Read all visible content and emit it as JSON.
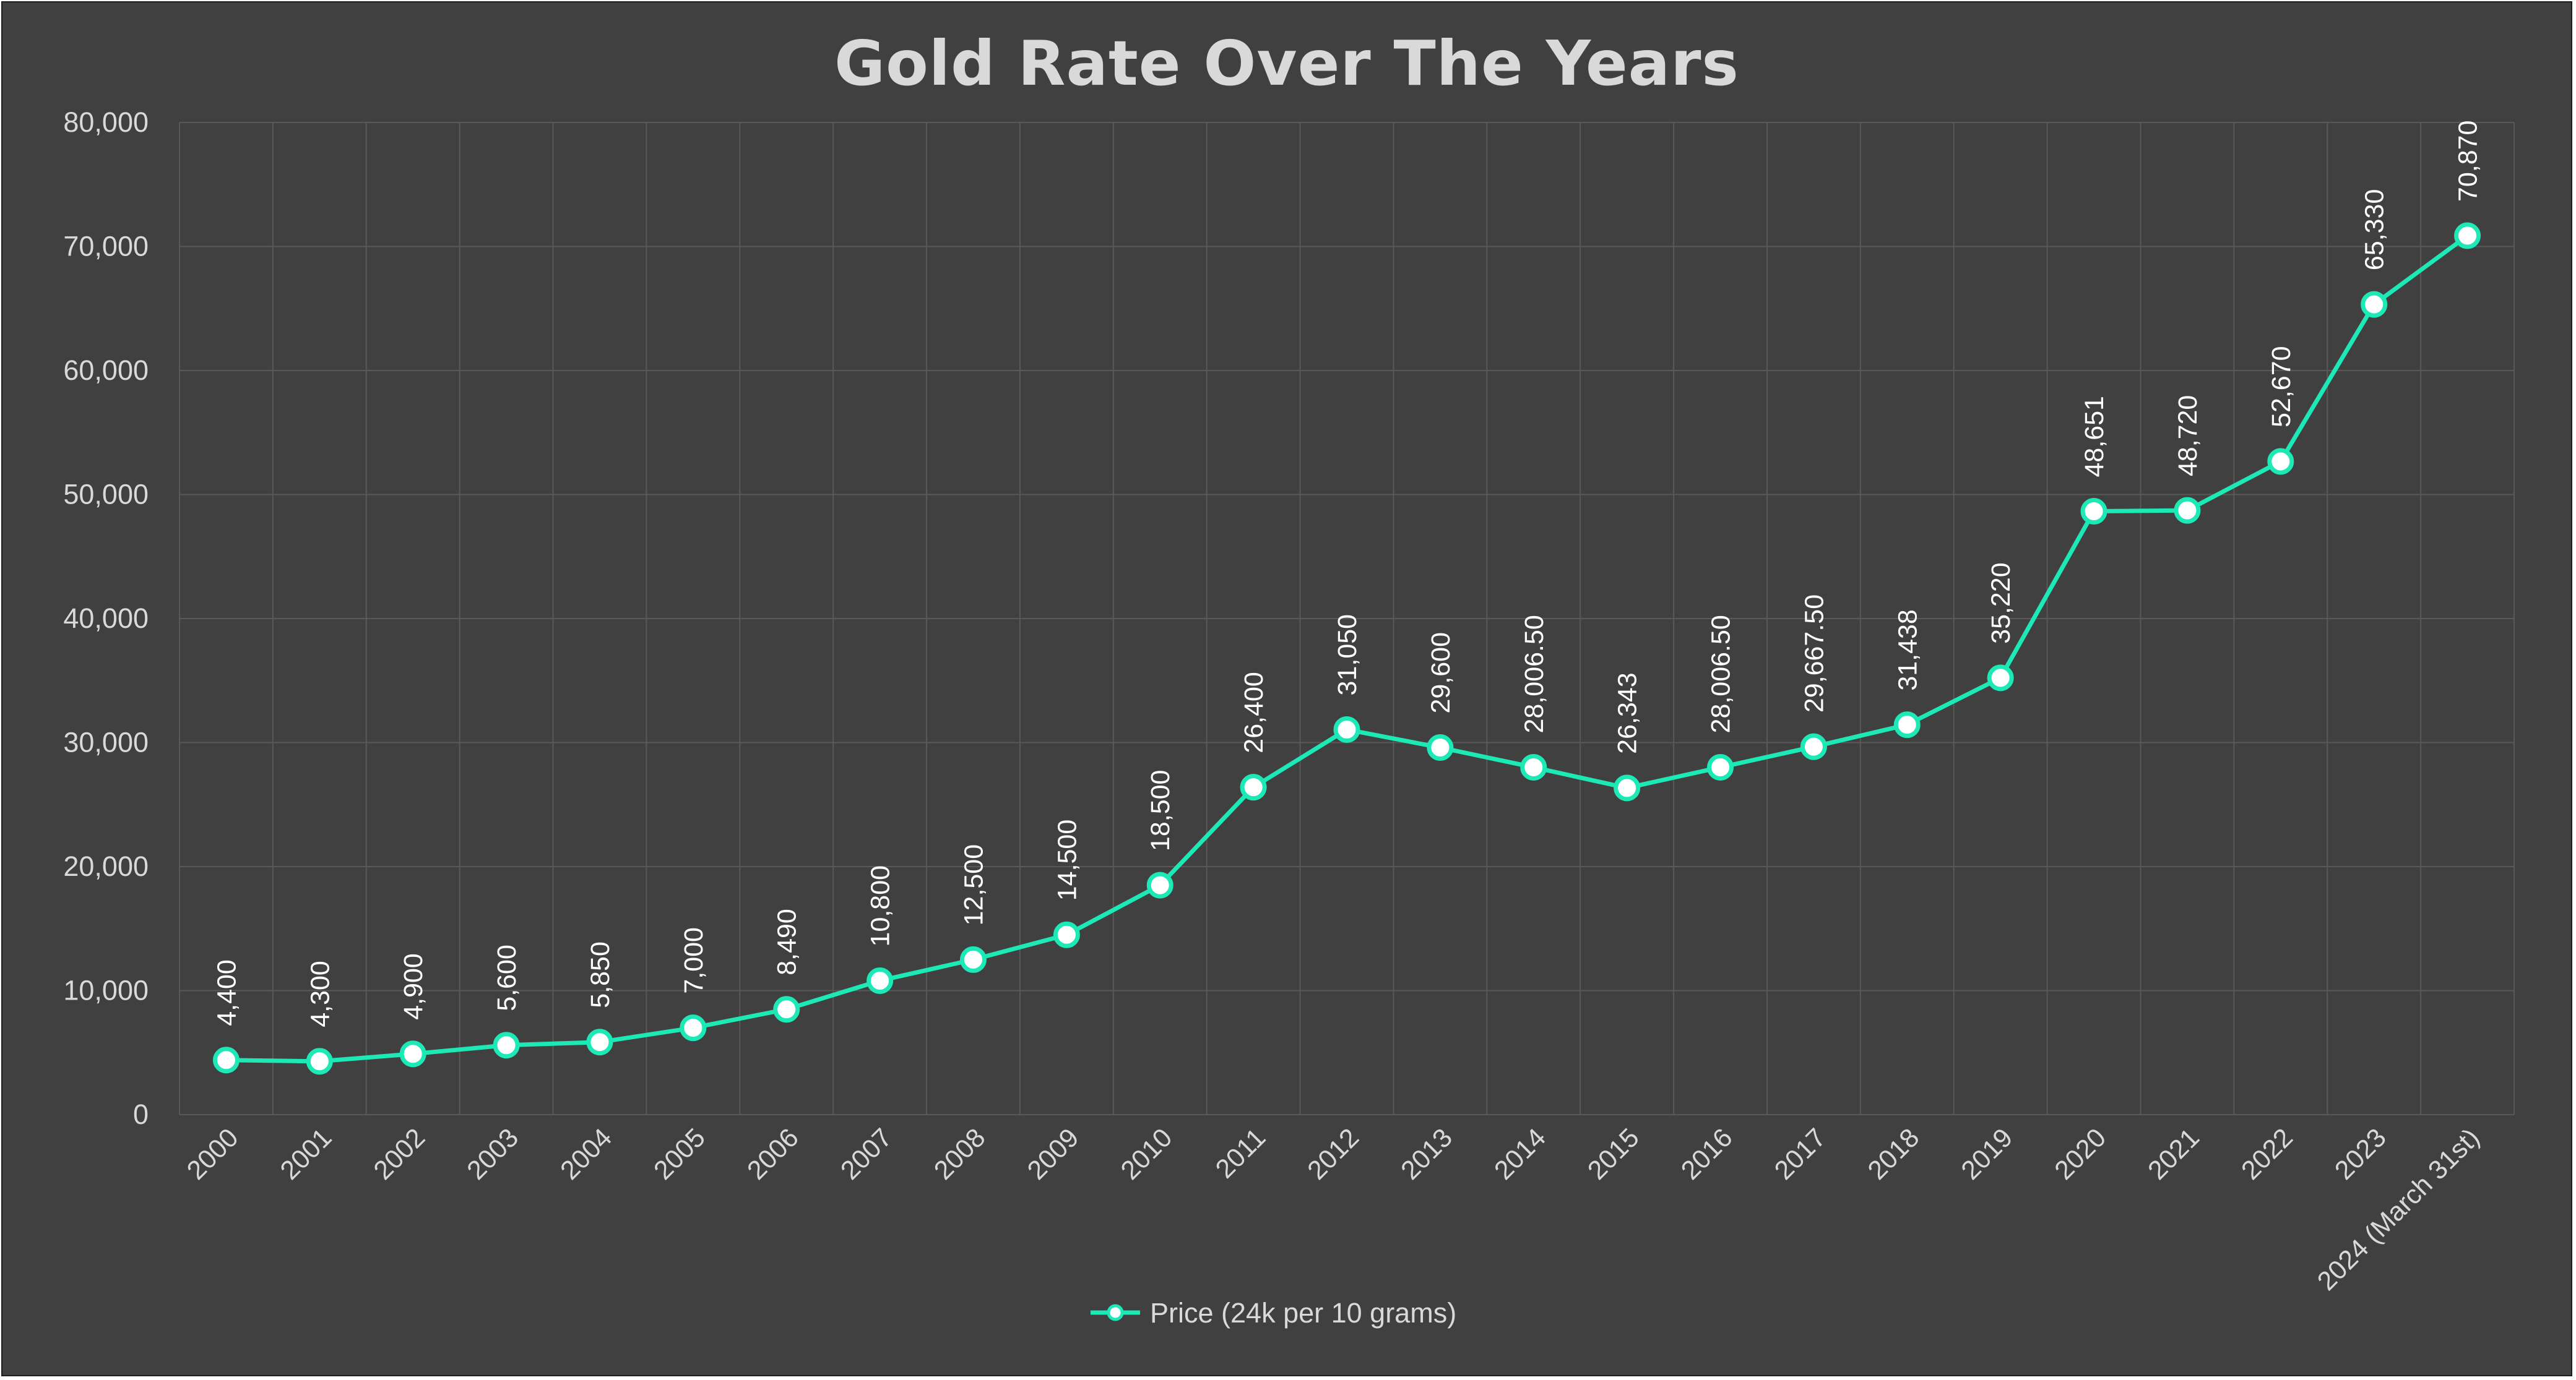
{
  "chart_data": {
    "type": "line",
    "title": "Gold Rate Over The Years",
    "xlabel": "",
    "ylabel": "",
    "categories": [
      "2000",
      "2001",
      "2002",
      "2003",
      "2004",
      "2005",
      "2006",
      "2007",
      "2008",
      "2009",
      "2010",
      "2011",
      "2012",
      "2013",
      "2014",
      "2015",
      "2016",
      "2017",
      "2018",
      "2019",
      "2020",
      "2021",
      "2022",
      "2023",
      "2024 (March 31st)"
    ],
    "series": [
      {
        "name": "Price (24k per 10 grams)",
        "values": [
          4400,
          4300,
          4900,
          5600,
          5850,
          7000,
          8490,
          10800,
          12500,
          14500,
          18500,
          26400,
          31050,
          29600,
          28006.5,
          26343,
          28006.5,
          29667.5,
          31438,
          35220,
          48651,
          48720,
          52670,
          65330,
          70870
        ],
        "data_labels": [
          "4,400",
          "4,300",
          "4,900",
          "5,600",
          "5,850",
          "7,000",
          "8,490",
          "10,800",
          "12,500",
          "14,500",
          "18,500",
          "26,400",
          "31,050",
          "29,600",
          "28,006.50",
          "26,343",
          "28,006.50",
          "29,667.50",
          "31,438",
          "35,220",
          "48,651",
          "48,720",
          "52,670",
          "65,330",
          "70,870"
        ],
        "color": "#1de9b6"
      }
    ],
    "ylim": [
      0,
      80000
    ],
    "y_ticks": [
      0,
      10000,
      20000,
      30000,
      40000,
      50000,
      60000,
      70000,
      80000
    ],
    "y_tick_labels": [
      "0",
      "10,000",
      "20,000",
      "30,000",
      "40,000",
      "50,000",
      "60,000",
      "70,000",
      "80,000"
    ],
    "grid": true,
    "legend_position": "bottom",
    "colors": {
      "background": "#404040",
      "gridline": "#595959",
      "text": "#d9d9d9",
      "marker_fill": "#ffffff"
    }
  }
}
